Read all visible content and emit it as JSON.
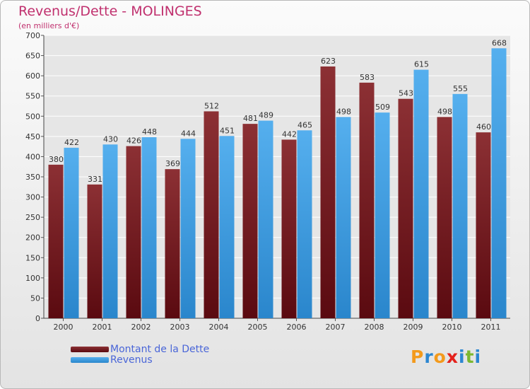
{
  "chart_data": {
    "type": "bar",
    "title": "Revenus/Dette - MOLINGES",
    "subtitle": "(en milliers d'€)",
    "categories": [
      "2000",
      "2001",
      "2002",
      "2003",
      "2004",
      "2005",
      "2006",
      "2007",
      "2008",
      "2009",
      "2010",
      "2011"
    ],
    "series": [
      {
        "name": "Montant de la Dette",
        "values": [
          380,
          331,
          426,
          369,
          512,
          481,
          442,
          623,
          583,
          543,
          498,
          460
        ],
        "color": "#7a1c22"
      },
      {
        "name": "Revenus",
        "values": [
          422,
          430,
          448,
          444,
          451,
          489,
          465,
          498,
          509,
          615,
          555,
          668
        ],
        "color": "#3a9ee4"
      }
    ],
    "ylim": [
      0,
      700
    ],
    "yticks": [
      0,
      50,
      100,
      150,
      200,
      250,
      300,
      350,
      400,
      450,
      500,
      550,
      600,
      650,
      700
    ],
    "grid": true,
    "legend_position": "bottom-left"
  },
  "logo": {
    "letters": [
      "P",
      "r",
      "o",
      "x",
      "i",
      "t",
      "i"
    ],
    "colors": [
      "#f39a1c",
      "#2b86d1",
      "#f39a1c",
      "#e4221c",
      "#2b86d1",
      "#7cb82f",
      "#2b86d1"
    ]
  }
}
